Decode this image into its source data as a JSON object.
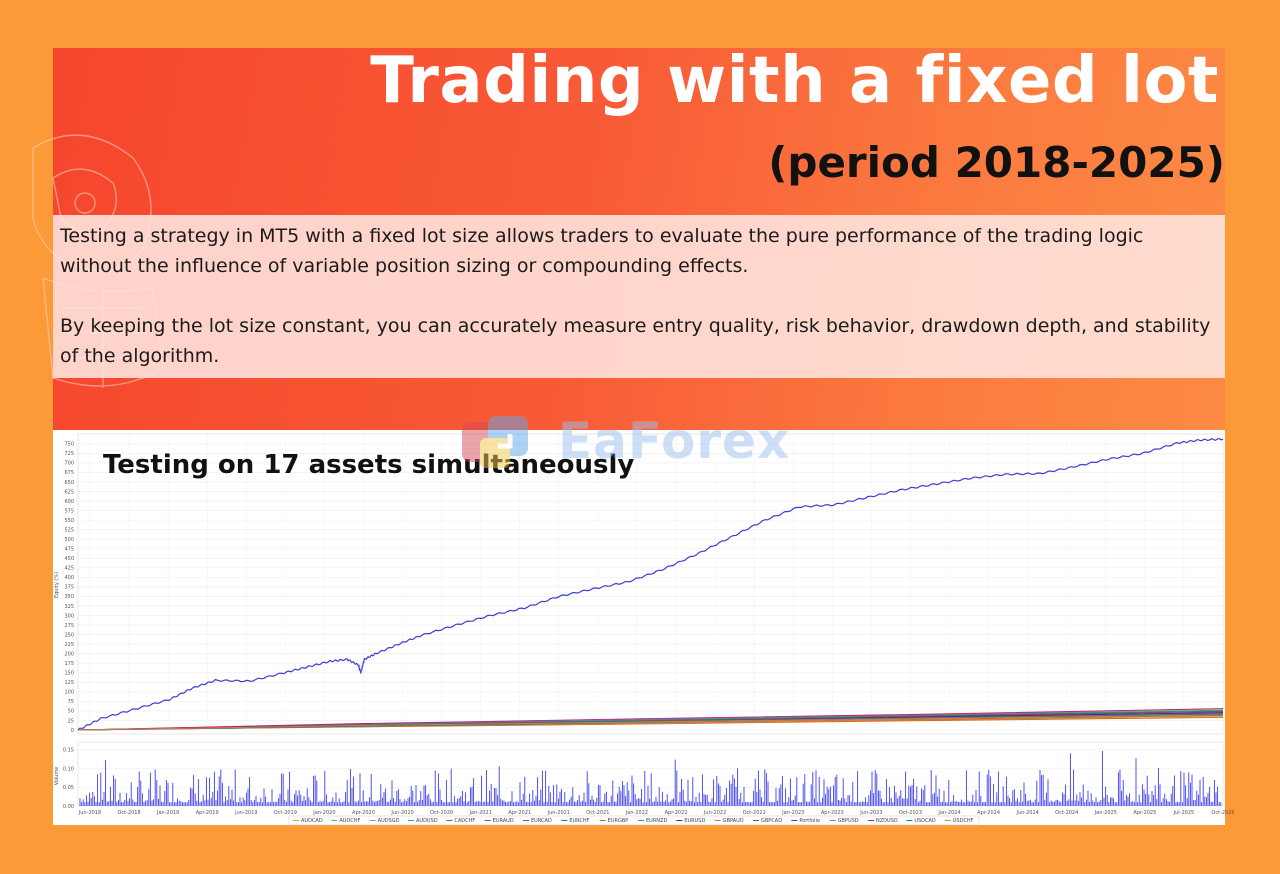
{
  "header": {
    "title": "Trading with a fixed lot",
    "subtitle": "(period 2018-2025)"
  },
  "description": {
    "paragraph1": "Testing a strategy in MT5 with a fixed lot size allows traders to evaluate the pure performance of the trading logic without the influence of variable position sizing or compounding effects.",
    "paragraph2": " By keeping the lot size constant, you can accurately measure entry quality, risk behavior, drawdown depth, and stability of the algorithm."
  },
  "watermark": {
    "text": "EaForex"
  },
  "chart_heading": "Testing on 17 assets simultaneously",
  "colors": {
    "page_background": "#fb9a36",
    "banner_red": "#f5462d",
    "banner_orange": "#fd8b44",
    "portfolio_line": "#3b3fd1",
    "volume_bars": "#3c3ff0"
  },
  "chart_data": [
    {
      "type": "line",
      "ylabel": "Equity (%)",
      "ylim": [
        0,
        760
      ],
      "yticks": [
        0,
        25,
        50,
        75,
        100,
        125,
        150,
        175,
        200,
        225,
        250,
        275,
        300,
        325,
        350,
        375,
        400,
        425,
        450,
        475,
        500,
        525,
        550,
        575,
        600,
        625,
        650,
        675,
        700,
        725,
        750
      ],
      "x_tick_labels": [
        "Jun-2018",
        "Oct-2018",
        "Jan-2019",
        "Apr-2019",
        "Jun-2019",
        "Oct-2019",
        "Jan-2020",
        "Apr-2020",
        "Jun-2020",
        "Oct-2020",
        "Jan-2021",
        "Apr-2021",
        "Jun-2021",
        "Oct-2021",
        "Jan-2022",
        "Apr-2022",
        "Jun-2022",
        "Oct-2022",
        "Jan-2023",
        "Apr-2023",
        "Jun-2023",
        "Oct-2023",
        "Jan-2024",
        "Apr-2024",
        "Jun-2024",
        "Oct-2024",
        "Jan-2025",
        "Apr-2025",
        "Jul-2025",
        "Oct-2025"
      ],
      "grid": true,
      "series": [
        {
          "name": "Portfolio",
          "color": "#3b3fd1",
          "x": [
            0,
            0.02,
            0.05,
            0.08,
            0.1,
            0.12,
            0.15,
            0.18,
            0.2,
            0.22,
            0.235,
            0.245,
            0.247,
            0.25,
            0.26,
            0.28,
            0.3,
            0.33,
            0.36,
            0.39,
            0.42,
            0.45,
            0.48,
            0.51,
            0.54,
            0.57,
            0.6,
            0.63,
            0.66,
            0.69,
            0.72,
            0.75,
            0.78,
            0.81,
            0.84,
            0.87,
            0.9,
            0.93,
            0.96,
            0.98,
            1.0
          ],
          "y": [
            0,
            30,
            55,
            80,
            110,
            130,
            128,
            150,
            165,
            180,
            185,
            170,
            150,
            185,
            200,
            225,
            248,
            275,
            300,
            320,
            350,
            370,
            388,
            420,
            460,
            505,
            550,
            585,
            590,
            610,
            630,
            645,
            660,
            670,
            672,
            690,
            710,
            725,
            752,
            760,
            762
          ]
        },
        {
          "name": "AUDCAD",
          "color": "#e6a23c",
          "x": [
            0,
            0.25,
            0.5,
            0.75,
            1.0
          ],
          "y": [
            0,
            10,
            18,
            26,
            35
          ]
        },
        {
          "name": "AUDCHF",
          "color": "#67c23a",
          "x": [
            0,
            0.25,
            0.5,
            0.75,
            1.0
          ],
          "y": [
            0,
            14,
            28,
            40,
            55
          ]
        },
        {
          "name": "AUDSGD",
          "color": "#909399",
          "x": [
            0,
            0.25,
            0.5,
            0.75,
            1.0
          ],
          "y": [
            0,
            12,
            24,
            34,
            44
          ]
        },
        {
          "name": "AUDUSD",
          "color": "#20b2aa",
          "x": [
            0,
            0.25,
            0.5,
            0.75,
            1.0
          ],
          "y": [
            0,
            16,
            26,
            38,
            50
          ]
        },
        {
          "name": "CADCHF",
          "color": "#a0522d",
          "x": [
            0,
            0.25,
            0.5,
            0.75,
            1.0
          ],
          "y": [
            0,
            9,
            20,
            28,
            38
          ]
        },
        {
          "name": "EURAUD",
          "color": "#b03060",
          "x": [
            0,
            0.25,
            0.5,
            0.75,
            1.0
          ],
          "y": [
            0,
            11,
            22,
            33,
            46
          ]
        },
        {
          "name": "EURCAD",
          "color": "#6a5acd",
          "x": [
            0,
            0.25,
            0.5,
            0.75,
            1.0
          ],
          "y": [
            0,
            13,
            25,
            36,
            48
          ]
        },
        {
          "name": "EURCHF",
          "color": "#2e8b57",
          "x": [
            0,
            0.25,
            0.5,
            0.75,
            1.0
          ],
          "y": [
            0,
            10,
            21,
            30,
            41
          ]
        },
        {
          "name": "EURGBP",
          "color": "#d2691e",
          "x": [
            0,
            0.25,
            0.5,
            0.75,
            1.0
          ],
          "y": [
            0,
            8,
            16,
            25,
            33
          ]
        },
        {
          "name": "EURNZD",
          "color": "#4682b4",
          "x": [
            0,
            0.25,
            0.5,
            0.75,
            1.0
          ],
          "y": [
            0,
            15,
            27,
            39,
            52
          ]
        },
        {
          "name": "EURUSD",
          "color": "#8b008b",
          "x": [
            0,
            0.25,
            0.5,
            0.75,
            1.0
          ],
          "y": [
            0,
            12,
            23,
            35,
            45
          ]
        },
        {
          "name": "GBPAUD",
          "color": "#ff6347",
          "x": [
            0,
            0.25,
            0.5,
            0.75,
            1.0
          ],
          "y": [
            0,
            9,
            19,
            29,
            40
          ]
        },
        {
          "name": "GBPCAD",
          "color": "#556b2f",
          "x": [
            0,
            0.25,
            0.5,
            0.75,
            1.0
          ],
          "y": [
            0,
            13,
            24,
            37,
            49
          ]
        },
        {
          "name": "GBPUSD",
          "color": "#708090",
          "x": [
            0,
            0.25,
            0.5,
            0.75,
            1.0
          ],
          "y": [
            0,
            11,
            22,
            32,
            43
          ]
        },
        {
          "name": "NZDUSD",
          "color": "#c71585",
          "x": [
            0,
            0.25,
            0.5,
            0.75,
            1.0
          ],
          "y": [
            0,
            17,
            30,
            42,
            56
          ]
        },
        {
          "name": "USDCAD",
          "color": "#008b8b",
          "x": [
            0,
            0.25,
            0.5,
            0.75,
            1.0
          ],
          "y": [
            0,
            10,
            20,
            31,
            42
          ]
        },
        {
          "name": "USDCHF",
          "color": "#cd853f",
          "x": [
            0,
            0.25,
            0.5,
            0.75,
            1.0
          ],
          "y": [
            0,
            12,
            21,
            30,
            39
          ]
        }
      ]
    },
    {
      "type": "bar",
      "ylabel": "Volume",
      "ylim": [
        0,
        0.16
      ],
      "yticks": [
        0.0,
        0.05,
        0.1,
        0.15
      ],
      "values_description_range": [
        0.01,
        0.15
      ],
      "color": "#3c3ff0"
    }
  ]
}
